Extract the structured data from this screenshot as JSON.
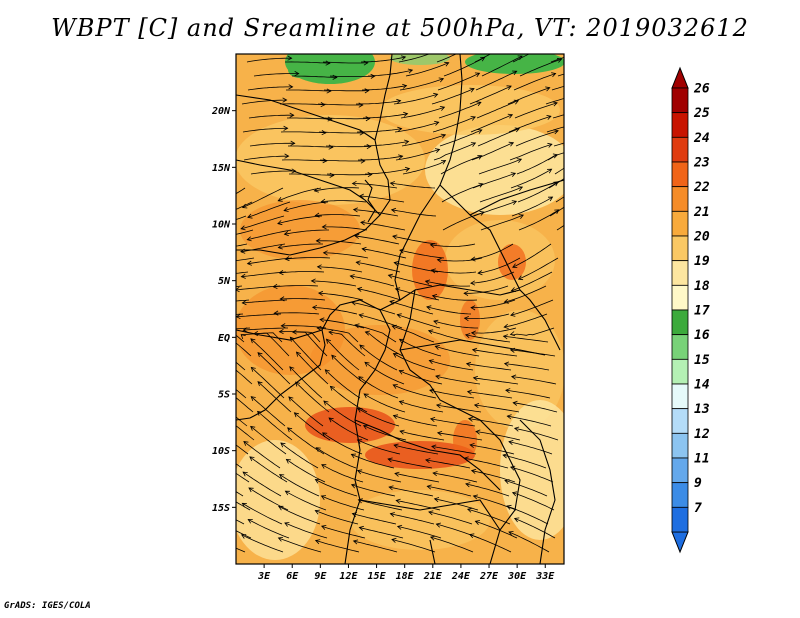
{
  "title": "WBPT [C] and Sreamline at 500hPa, VT: 2019032612",
  "credit": "GrADS: IGES/COLA",
  "map": {
    "x_range": [
      0,
      35
    ],
    "y_range": [
      -20,
      25
    ],
    "lat_ticks": [
      {
        "value": 20,
        "label": "20N"
      },
      {
        "value": 15,
        "label": "15N"
      },
      {
        "value": 10,
        "label": "10N"
      },
      {
        "value": 5,
        "label": "5N"
      },
      {
        "value": 0,
        "label": "EQ"
      },
      {
        "value": -5,
        "label": "5S"
      },
      {
        "value": -10,
        "label": "10S"
      },
      {
        "value": -15,
        "label": "15S"
      }
    ],
    "lon_ticks": [
      {
        "value": 3,
        "label": "3E"
      },
      {
        "value": 6,
        "label": "6E"
      },
      {
        "value": 9,
        "label": "9E"
      },
      {
        "value": 12,
        "label": "12E"
      },
      {
        "value": 15,
        "label": "15E"
      },
      {
        "value": 18,
        "label": "18E"
      },
      {
        "value": 21,
        "label": "21E"
      },
      {
        "value": 24,
        "label": "24E"
      },
      {
        "value": 27,
        "label": "27E"
      },
      {
        "value": 30,
        "label": "30E"
      },
      {
        "value": 33,
        "label": "33E"
      }
    ]
  },
  "colorbar": {
    "labels": [
      "26",
      "25",
      "24",
      "23",
      "22",
      "21",
      "20",
      "19",
      "18",
      "17",
      "16",
      "15",
      "14",
      "13",
      "12",
      "11",
      "9",
      "7"
    ],
    "colors": [
      "#a00000",
      "#c81400",
      "#e03c10",
      "#f06418",
      "#f58c28",
      "#f8aa3c",
      "#fac864",
      "#fde6a0",
      "#fff8c8",
      "#3caa3c",
      "#78d278",
      "#b4f0b4",
      "#e6fafa",
      "#b4dcf8",
      "#8cc4f0",
      "#64a8eb",
      "#3c8ce6",
      "#1e6ee1"
    ],
    "top_color": "#a00000",
    "bottom_color": "#1e6ee1"
  }
}
